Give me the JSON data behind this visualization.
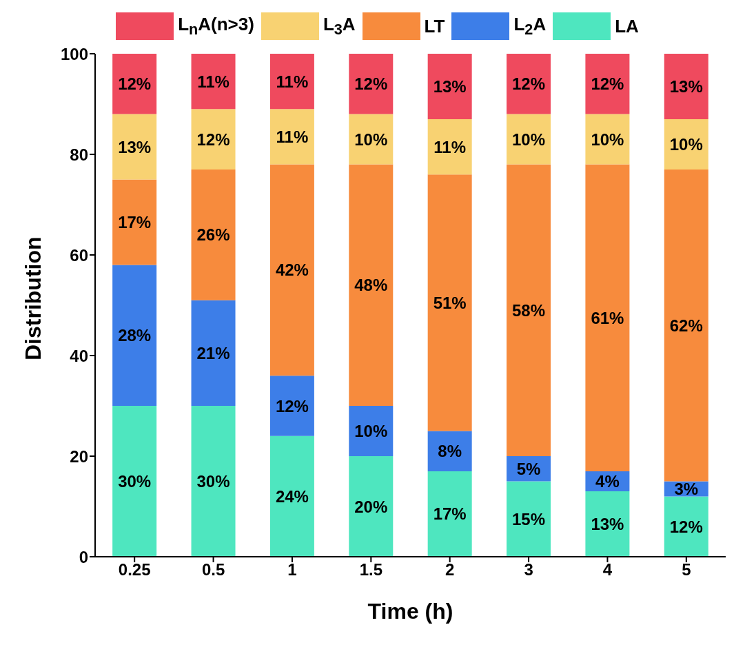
{
  "chart_data": {
    "type": "bar",
    "stacked": true,
    "xlabel": "Time (h)",
    "ylabel": "Distribution",
    "categories": [
      "0.25",
      "0.5",
      "1",
      "1.5",
      "2",
      "3",
      "4",
      "5"
    ],
    "series": [
      {
        "name": "LA",
        "color": "#4ee6bf",
        "values": [
          30,
          30,
          24,
          20,
          17,
          15,
          13,
          12
        ],
        "value_labels": [
          "30%",
          "30%",
          "24%",
          "20%",
          "17%",
          "15%",
          "13%",
          "12%"
        ]
      },
      {
        "name": "L$_{2}$A",
        "color": "#3d7ee8",
        "values": [
          28,
          21,
          12,
          10,
          8,
          5,
          4,
          3
        ],
        "value_labels": [
          "28%",
          "21%",
          "12%",
          "10%",
          "8%",
          "5%",
          "4%",
          "3%"
        ]
      },
      {
        "name": "LT",
        "color": "#f78b3d",
        "values": [
          17,
          26,
          42,
          48,
          51,
          58,
          61,
          62
        ],
        "value_labels": [
          "17%",
          "26%",
          "42%",
          "48%",
          "51%",
          "58%",
          "61%",
          "62%"
        ]
      },
      {
        "name": "L$_{3}$A",
        "color": "#f8d272",
        "values": [
          13,
          12,
          11,
          10,
          11,
          10,
          10,
          10
        ],
        "value_labels": [
          "13%",
          "12%",
          "11%",
          "10%",
          "11%",
          "10%",
          "10%",
          "10%"
        ]
      },
      {
        "name": "L$_{n}$A(n>3)",
        "color": "#ef4a5e",
        "values": [
          12,
          11,
          11,
          12,
          13,
          12,
          12,
          13
        ],
        "value_labels": [
          "12%",
          "11%",
          "11%",
          "12%",
          "13%",
          "12%",
          "12%",
          "13%"
        ]
      }
    ],
    "ylim": [
      0,
      100
    ],
    "yticks": [
      0,
      20,
      40,
      60,
      80,
      100
    ],
    "grid": false,
    "legend": "top"
  }
}
